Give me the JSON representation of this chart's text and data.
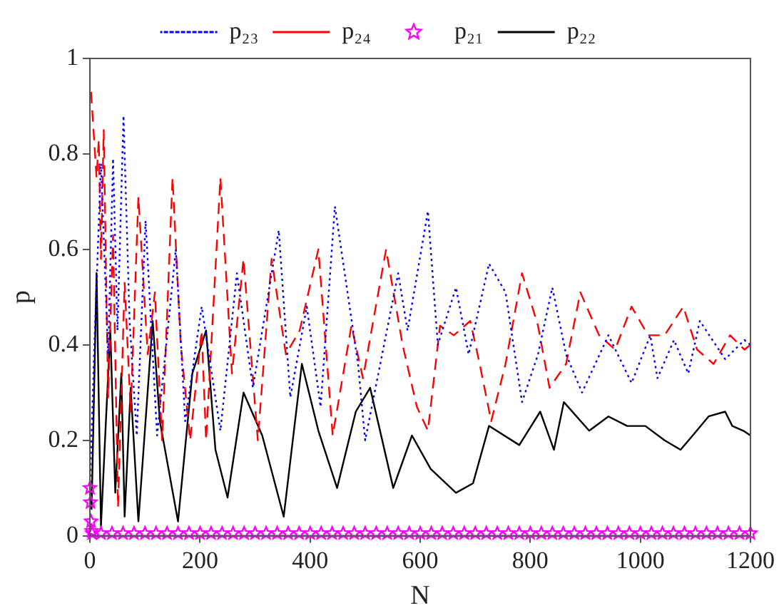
{
  "chart_data": {
    "type": "line",
    "xlabel": "N",
    "ylabel": "p",
    "xlim": [
      0,
      1200
    ],
    "xticks": [
      0,
      200,
      400,
      600,
      800,
      1000,
      1200
    ],
    "ylim": [
      0,
      1
    ],
    "yticks": [
      0,
      0.2,
      0.4,
      0.6,
      0.8,
      1
    ],
    "grid": false,
    "legend": "top",
    "series": [
      {
        "name": "p₂₃",
        "color": "#0000ff",
        "line_style": "dotted",
        "marker": "none",
        "x": [
          0,
          8,
          20,
          33,
          42,
          50,
          61,
          72,
          85,
          101,
          122,
          156,
          173,
          203,
          237,
          267,
          296,
          343,
          364,
          394,
          419,
          445,
          487,
          500,
          560,
          577,
          614,
          632,
          665,
          688,
          725,
          755,
          785,
          814,
          840,
          865,
          894,
          942,
          984,
          1018,
          1031,
          1061,
          1087,
          1108,
          1154,
          1189,
          1200
        ],
        "values": [
          0.1,
          0.4,
          0.78,
          0.38,
          0.79,
          0.43,
          0.88,
          0.45,
          0.21,
          0.66,
          0.21,
          0.6,
          0.24,
          0.48,
          0.22,
          0.55,
          0.31,
          0.64,
          0.29,
          0.48,
          0.27,
          0.69,
          0.36,
          0.2,
          0.55,
          0.43,
          0.68,
          0.4,
          0.52,
          0.38,
          0.57,
          0.51,
          0.28,
          0.38,
          0.52,
          0.38,
          0.3,
          0.42,
          0.32,
          0.42,
          0.33,
          0.41,
          0.34,
          0.45,
          0.37,
          0.41,
          0.4
        ]
      },
      {
        "name": "p₂₄",
        "color": "#ff0000",
        "line_style": "dashed",
        "marker": "none",
        "x": [
          2,
          12,
          16,
          20,
          25,
          33,
          42,
          51,
          63,
          74,
          88,
          105,
          118,
          131,
          150,
          165,
          182,
          203,
          211,
          237,
          258,
          279,
          305,
          330,
          356,
          381,
          415,
          441,
          475,
          496,
          538,
          568,
          594,
          614,
          636,
          661,
          691,
          708,
          729,
          755,
          785,
          814,
          835,
          865,
          891,
          925,
          954,
          984,
          1014,
          1044,
          1078,
          1103,
          1133,
          1163,
          1189,
          1200
        ],
        "values": [
          0.93,
          0.75,
          0.83,
          0.58,
          0.85,
          0.29,
          0.63,
          0.06,
          0.53,
          0.26,
          0.71,
          0.38,
          0.51,
          0.2,
          0.75,
          0.4,
          0.2,
          0.43,
          0.2,
          0.75,
          0.34,
          0.58,
          0.2,
          0.58,
          0.38,
          0.43,
          0.6,
          0.21,
          0.44,
          0.33,
          0.6,
          0.4,
          0.27,
          0.22,
          0.44,
          0.42,
          0.45,
          0.36,
          0.24,
          0.36,
          0.55,
          0.44,
          0.31,
          0.36,
          0.51,
          0.42,
          0.39,
          0.48,
          0.42,
          0.42,
          0.48,
          0.39,
          0.36,
          0.42,
          0.39,
          0.4
        ]
      },
      {
        "name": "p₂₁",
        "color": "#ff00ff",
        "type": "scatter",
        "marker": "star",
        "x": [
          0,
          1,
          2,
          3,
          4,
          20,
          40,
          60,
          80,
          100,
          120,
          140,
          160,
          180,
          200,
          220,
          240,
          260,
          280,
          300,
          320,
          340,
          360,
          380,
          400,
          420,
          440,
          460,
          480,
          500,
          520,
          540,
          560,
          580,
          600,
          620,
          640,
          660,
          680,
          700,
          720,
          740,
          760,
          780,
          800,
          820,
          840,
          860,
          880,
          900,
          920,
          940,
          960,
          980,
          1000,
          1020,
          1040,
          1060,
          1080,
          1100,
          1120,
          1140,
          1160,
          1180,
          1200
        ],
        "values": [
          0.1,
          0.07,
          0.03,
          0.01,
          0.005,
          0.005,
          0.005,
          0.005,
          0.005,
          0.005,
          0.005,
          0.005,
          0.005,
          0.005,
          0.005,
          0.005,
          0.005,
          0.005,
          0.005,
          0.005,
          0.005,
          0.005,
          0.005,
          0.005,
          0.005,
          0.005,
          0.005,
          0.005,
          0.005,
          0.005,
          0.005,
          0.005,
          0.005,
          0.005,
          0.005,
          0.005,
          0.005,
          0.005,
          0.005,
          0.005,
          0.005,
          0.005,
          0.005,
          0.005,
          0.005,
          0.005,
          0.005,
          0.005,
          0.005,
          0.005,
          0.005,
          0.005,
          0.005,
          0.005,
          0.005,
          0.005,
          0.005,
          0.005,
          0.005,
          0.005,
          0.005,
          0.005,
          0.005,
          0.005,
          0.005
        ]
      },
      {
        "name": "p₂₂",
        "color": "#000000",
        "line_style": "solid",
        "marker": "none",
        "x": [
          0,
          3,
          12,
          20,
          29,
          37,
          46,
          57,
          63,
          74,
          88,
          114,
          127,
          160,
          186,
          211,
          228,
          250,
          279,
          313,
          352,
          385,
          415,
          449,
          483,
          509,
          551,
          585,
          619,
          665,
          696,
          725,
          780,
          818,
          843,
          861,
          907,
          942,
          976,
          1009,
          1044,
          1073,
          1095,
          1124,
          1154,
          1167,
          1187,
          1200
        ],
        "values": [
          0.1,
          0.056,
          0.55,
          0.02,
          0.24,
          0.43,
          0.09,
          0.34,
          0.04,
          0.31,
          0.03,
          0.45,
          0.24,
          0.03,
          0.34,
          0.43,
          0.18,
          0.08,
          0.3,
          0.21,
          0.04,
          0.36,
          0.22,
          0.1,
          0.26,
          0.31,
          0.1,
          0.21,
          0.14,
          0.09,
          0.11,
          0.23,
          0.19,
          0.26,
          0.18,
          0.28,
          0.22,
          0.25,
          0.23,
          0.23,
          0.2,
          0.18,
          0.21,
          0.25,
          0.26,
          0.23,
          0.22,
          0.21
        ]
      }
    ]
  }
}
